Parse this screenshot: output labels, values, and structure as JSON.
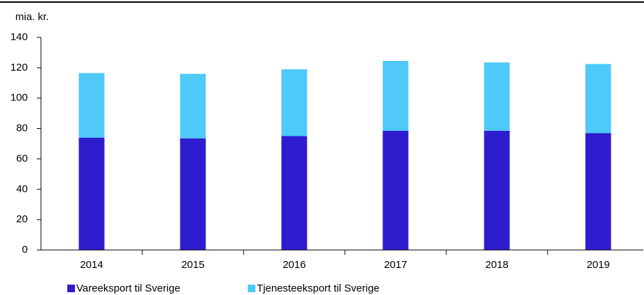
{
  "chart_data": {
    "type": "stacked_bar",
    "y_label": "mia. kr.",
    "categories": [
      "2014",
      "2015",
      "2016",
      "2017",
      "2018",
      "2019"
    ],
    "series": [
      {
        "name": "Vareeksport til Sverige",
        "color": "#2e1ccf",
        "values": [
          74,
          73.5,
          75,
          78.5,
          78.5,
          77
        ]
      },
      {
        "name": "Tjenesteeksport til Sverige",
        "color": "#4fc9f8",
        "values": [
          42.5,
          42.5,
          44,
          46,
          45,
          45.5
        ]
      }
    ],
    "ylim": [
      0,
      140
    ],
    "yticks": [
      0,
      20,
      40,
      60,
      80,
      100,
      120,
      140
    ],
    "grid": false
  }
}
